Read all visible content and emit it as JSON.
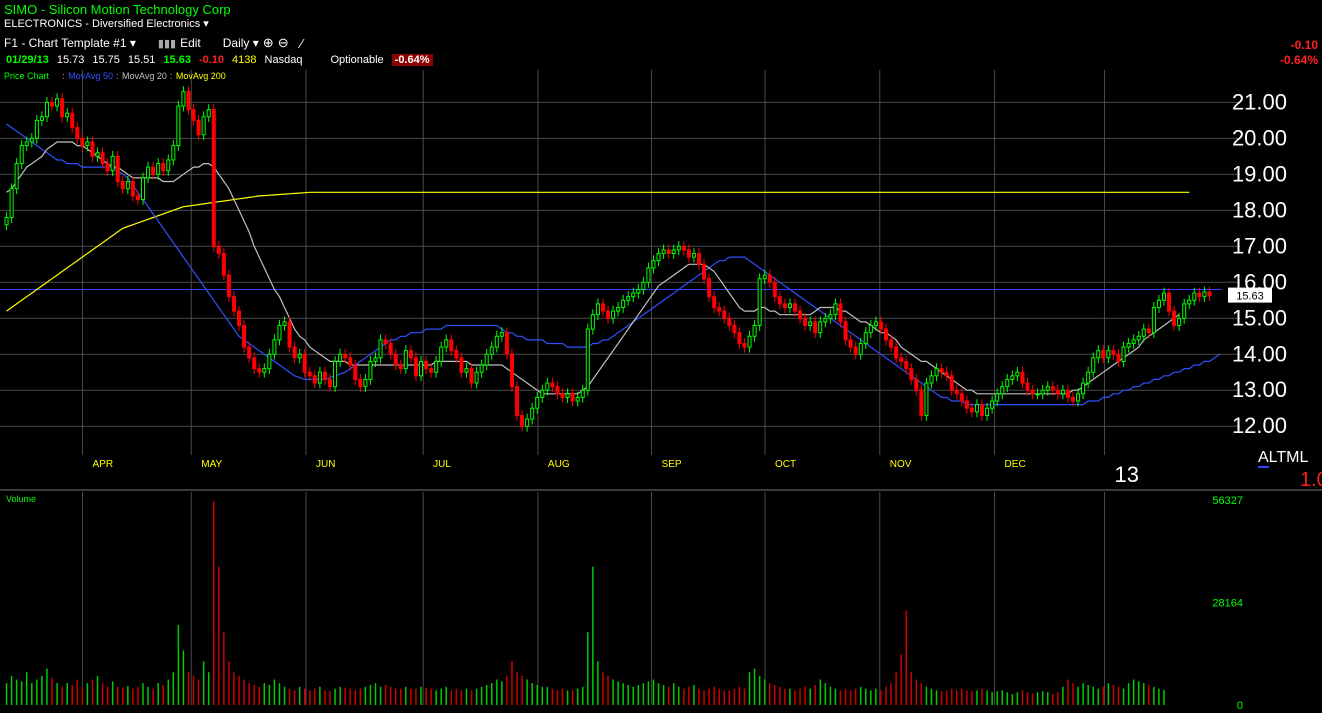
{
  "header": {
    "symbol_line": "SIMO  - Silicon Motion Technology Corp",
    "sector_line": "ELECTRONICS - Diversified Electronics",
    "toolbar": {
      "template": "F1 - Chart Template #1",
      "edit": "Edit",
      "period": "Daily"
    },
    "quote": {
      "date": "01/29/13",
      "open": "15.73",
      "high": "15.75",
      "low": "15.51",
      "last": "15.63",
      "change": "-0.10",
      "volume": "4138",
      "exchange": "Nasdaq",
      "optionable": "Optionable",
      "pct_change": "-0.64%"
    },
    "right_change": "-0.10",
    "right_pct": "-0.64%"
  },
  "chart_data": [
    {
      "type": "candlestick",
      "title": "",
      "legend": [
        "Price Chart",
        "MovAvg 50",
        "MovAvg 20",
        "MovAvg 200"
      ],
      "legend_colors": [
        "#00ff00",
        "#3050ff",
        "#c0c0c0",
        "#ffff00"
      ],
      "y_ticks": [
        "12.00",
        "13.00",
        "14.00",
        "15.00",
        "16.00",
        "17.00",
        "18.00",
        "19.00",
        "20.00",
        "21.00"
      ],
      "ylim": [
        11.2,
        21.9
      ],
      "x_labels": [
        "APR",
        "MAY",
        "JUN",
        "JUL",
        "AUG",
        "SEP",
        "OCT",
        "NOV",
        "DEC",
        "13"
      ],
      "last_price_label": "15.63",
      "horizontal_line": 15.8,
      "grid": true,
      "closes": [
        17.8,
        18.6,
        19.3,
        19.8,
        19.9,
        20.0,
        20.5,
        20.6,
        21.0,
        20.9,
        21.1,
        20.6,
        20.7,
        20.3,
        20.0,
        19.8,
        19.9,
        19.5,
        19.6,
        19.3,
        19.1,
        19.5,
        18.8,
        18.6,
        18.8,
        18.4,
        18.3,
        18.9,
        19.2,
        19.0,
        19.3,
        19.1,
        19.4,
        19.8,
        20.9,
        21.3,
        20.8,
        20.5,
        20.1,
        20.6,
        20.8,
        17.0,
        16.8,
        16.2,
        15.6,
        15.2,
        14.8,
        14.2,
        13.9,
        13.6,
        13.5,
        13.6,
        14.0,
        14.4,
        14.8,
        14.9,
        14.2,
        13.9,
        14.0,
        13.5,
        13.4,
        13.2,
        13.5,
        13.3,
        13.1,
        13.8,
        14.0,
        13.9,
        13.7,
        13.3,
        13.1,
        13.3,
        13.8,
        13.9,
        14.4,
        14.3,
        14.0,
        13.7,
        13.6,
        14.1,
        13.9,
        13.4,
        13.8,
        13.6,
        13.5,
        13.8,
        14.2,
        14.4,
        14.1,
        13.9,
        13.5,
        13.6,
        13.2,
        13.5,
        13.7,
        14.0,
        14.2,
        14.5,
        14.6,
        14.0,
        13.1,
        12.3,
        12.0,
        12.2,
        12.5,
        12.8,
        13.0,
        13.2,
        13.1,
        12.9,
        12.8,
        12.9,
        12.7,
        12.8,
        13.0,
        14.7,
        15.1,
        15.4,
        15.2,
        15.0,
        15.2,
        15.3,
        15.5,
        15.6,
        15.7,
        15.8,
        16.0,
        16.4,
        16.6,
        16.8,
        16.9,
        16.8,
        16.9,
        17.0,
        16.9,
        16.7,
        16.8,
        16.5,
        16.1,
        15.6,
        15.3,
        15.2,
        15.0,
        14.8,
        14.6,
        14.3,
        14.2,
        14.5,
        14.8,
        16.1,
        16.2,
        16.0,
        15.6,
        15.4,
        15.3,
        15.4,
        15.2,
        15.0,
        14.8,
        14.9,
        14.6,
        14.9,
        15.0,
        15.1,
        15.4,
        14.9,
        14.4,
        14.2,
        14.0,
        14.3,
        14.6,
        14.8,
        14.9,
        14.7,
        14.4,
        14.2,
        13.9,
        13.8,
        13.6,
        13.3,
        13.0,
        12.3,
        13.2,
        13.4,
        13.6,
        13.5,
        13.4,
        13.0,
        12.9,
        12.7,
        12.5,
        12.4,
        12.6,
        12.3,
        12.5,
        12.7,
        12.9,
        13.1,
        13.3,
        13.4,
        13.5,
        13.2,
        13.0,
        12.9,
        12.9,
        13.0,
        13.1,
        13.0,
        12.9,
        13.0,
        12.8,
        12.7,
        12.9,
        13.2,
        13.5,
        13.9,
        14.1,
        13.9,
        14.1,
        14.0,
        13.8,
        14.2,
        14.3,
        14.4,
        14.5,
        14.7,
        14.6,
        15.3,
        15.5,
        15.7,
        15.2,
        14.8,
        15.0,
        15.4,
        15.5,
        15.7,
        15.6,
        15.73,
        15.63
      ],
      "sma20": [
        18.5,
        18.6,
        18.8,
        19.0,
        19.2,
        19.3,
        19.4,
        19.5,
        19.7,
        19.8,
        19.9,
        19.9,
        19.9,
        19.9,
        19.8,
        19.8,
        19.7,
        19.6,
        19.5,
        19.4,
        19.3,
        19.2,
        19.2,
        19.1,
        19.0,
        18.9,
        18.9,
        18.9,
        18.9,
        18.9,
        18.9,
        18.8,
        18.8,
        18.8,
        18.9,
        19.0,
        19.1,
        19.2,
        19.2,
        19.3,
        19.3,
        19.2,
        19.0,
        18.8,
        18.6,
        18.3,
        18.0,
        17.7,
        17.4,
        17.0,
        16.7,
        16.4,
        16.1,
        15.8,
        15.6,
        15.3,
        15.0,
        14.7,
        14.5,
        14.4,
        14.2,
        14.1,
        14.0,
        13.9,
        13.8,
        13.8,
        13.8,
        13.8,
        13.7,
        13.7,
        13.7,
        13.7,
        13.7,
        13.7,
        13.7,
        13.7,
        13.7,
        13.7,
        13.7,
        13.7,
        13.7,
        13.7,
        13.7,
        13.7,
        13.7,
        13.8,
        13.8,
        13.8,
        13.8,
        13.8,
        13.8,
        13.8,
        13.7,
        13.7,
        13.7,
        13.7,
        13.7,
        13.7,
        13.7,
        13.6,
        13.5,
        13.4,
        13.3,
        13.2,
        13.1,
        13.0,
        12.9,
        12.9,
        12.9,
        12.9,
        12.9,
        12.9,
        12.9,
        12.9,
        13.0,
        13.1,
        13.3,
        13.5,
        13.7,
        13.9,
        14.1,
        14.3,
        14.5,
        14.7,
        14.9,
        15.1,
        15.3,
        15.5,
        15.7,
        15.9,
        16.0,
        16.1,
        16.2,
        16.3,
        16.4,
        16.5,
        16.5,
        16.5,
        16.5,
        16.4,
        16.3,
        16.1,
        15.9,
        15.7,
        15.5,
        15.3,
        15.2,
        15.2,
        15.2,
        15.3,
        15.3,
        15.2,
        15.2,
        15.1,
        15.1,
        15.1,
        15.1,
        15.1,
        15.1,
        15.1,
        15.2,
        15.3,
        15.3,
        15.3,
        15.3,
        15.2,
        15.2,
        15.1,
        15.0,
        14.9,
        14.9,
        14.8,
        14.7,
        14.6,
        14.6,
        14.5,
        14.4,
        14.2,
        14.1,
        14.0,
        13.9,
        13.8,
        13.8,
        13.7,
        13.6,
        13.5,
        13.4,
        13.3,
        13.2,
        13.1,
        13.0,
        13.0,
        12.9,
        12.9,
        12.9,
        12.9,
        12.9,
        12.9,
        12.9,
        12.9,
        12.9,
        12.9,
        12.9,
        12.9,
        12.9,
        12.9,
        12.9,
        12.9,
        12.9,
        12.9,
        12.9,
        13.0,
        13.0,
        13.1,
        13.2,
        13.3,
        13.4,
        13.5,
        13.6,
        13.7,
        13.8,
        13.9,
        14.0,
        14.1,
        14.2,
        14.4,
        14.5,
        14.6,
        14.7,
        14.8,
        14.9,
        15.0,
        15.1
      ],
      "sma50": [
        20.4,
        20.3,
        20.2,
        20.1,
        20.0,
        19.9,
        19.8,
        19.7,
        19.6,
        19.5,
        19.4,
        19.4,
        19.3,
        19.3,
        19.3,
        19.2,
        19.2,
        19.2,
        19.2,
        19.2,
        19.2,
        19.2,
        19.1,
        19.0,
        18.9,
        18.7,
        18.5,
        18.3,
        18.1,
        17.9,
        17.7,
        17.5,
        17.3,
        17.1,
        16.9,
        16.7,
        16.5,
        16.3,
        16.1,
        15.9,
        15.7,
        15.5,
        15.3,
        15.1,
        14.9,
        14.7,
        14.5,
        14.4,
        14.3,
        14.2,
        14.1,
        14.0,
        13.9,
        13.8,
        13.7,
        13.6,
        13.5,
        13.4,
        13.35,
        13.3,
        13.3,
        13.3,
        13.3,
        13.3,
        13.35,
        13.4,
        13.45,
        13.5,
        13.6,
        13.7,
        13.8,
        13.9,
        14.0,
        14.1,
        14.2,
        14.3,
        14.4,
        14.4,
        14.5,
        14.5,
        14.6,
        14.6,
        14.6,
        14.7,
        14.7,
        14.7,
        14.7,
        14.8,
        14.8,
        14.8,
        14.8,
        14.8,
        14.8,
        14.8,
        14.8,
        14.8,
        14.8,
        14.8,
        14.7,
        14.6,
        14.6,
        14.5,
        14.5,
        14.4,
        14.4,
        14.4,
        14.4,
        14.3,
        14.3,
        14.3,
        14.3,
        14.2,
        14.2,
        14.2,
        14.2,
        14.2,
        14.3,
        14.3,
        14.4,
        14.4,
        14.5,
        14.6,
        14.7,
        14.8,
        14.9,
        15.0,
        15.1,
        15.2,
        15.3,
        15.4,
        15.5,
        15.6,
        15.7,
        15.8,
        15.9,
        16.0,
        16.1,
        16.2,
        16.3,
        16.4,
        16.5,
        16.6,
        16.6,
        16.7,
        16.7,
        16.7,
        16.7,
        16.6,
        16.5,
        16.4,
        16.3,
        16.2,
        16.1,
        16.0,
        15.9,
        15.8,
        15.7,
        15.6,
        15.5,
        15.4,
        15.3,
        15.2,
        15.1,
        15.0,
        14.9,
        14.8,
        14.7,
        14.6,
        14.5,
        14.4,
        14.3,
        14.2,
        14.1,
        14.0,
        13.9,
        13.8,
        13.7,
        13.6,
        13.5,
        13.4,
        13.3,
        13.2,
        13.1,
        13.0,
        12.9,
        12.8,
        12.8,
        12.7,
        12.7,
        12.7,
        12.6,
        12.6,
        12.6,
        12.6,
        12.6,
        12.6,
        12.6,
        12.6,
        12.6,
        12.6,
        12.6,
        12.6,
        12.6,
        12.6,
        12.6,
        12.6,
        12.6,
        12.6,
        12.6,
        12.6,
        12.6,
        12.6,
        12.6,
        12.6,
        12.7,
        12.7,
        12.7,
        12.8,
        12.8,
        12.9,
        12.9,
        13.0,
        13.0,
        13.1,
        13.1,
        13.2,
        13.2,
        13.3,
        13.3,
        13.4,
        13.4,
        13.5,
        13.5,
        13.6,
        13.6,
        13.7,
        13.7,
        13.8,
        13.8,
        13.9,
        14.0
      ],
      "sma200": [
        15.2,
        15.3,
        15.4,
        15.5,
        15.6,
        15.7,
        15.8,
        15.9,
        16.0,
        16.1,
        16.2,
        16.3,
        16.4,
        16.5,
        16.6,
        16.7,
        16.8,
        16.9,
        17.0,
        17.1,
        17.2,
        17.3,
        17.4,
        17.5,
        17.55,
        17.6,
        17.65,
        17.7,
        17.75,
        17.8,
        17.85,
        17.9,
        17.95,
        18.0,
        18.05,
        18.1,
        18.12,
        18.14,
        18.16,
        18.18,
        18.2,
        18.22,
        18.24,
        18.26,
        18.28,
        18.3,
        18.32,
        18.34,
        18.36,
        18.38,
        18.4,
        18.41,
        18.42,
        18.43,
        18.44,
        18.45,
        18.46,
        18.47,
        18.48,
        18.49,
        18.5,
        18.5,
        18.5,
        18.5,
        18.5,
        18.5,
        18.5,
        18.5,
        18.5,
        18.5,
        18.5,
        18.5,
        18.5,
        18.5,
        18.5,
        18.5,
        18.5,
        18.5,
        18.5,
        18.5,
        18.5,
        18.5,
        18.5,
        18.5,
        18.5,
        18.5,
        18.5,
        18.5,
        18.5,
        18.5,
        18.5,
        18.5,
        18.5,
        18.5,
        18.5,
        18.5,
        18.5,
        18.5,
        18.5,
        18.5,
        18.5,
        18.5,
        18.5,
        18.5,
        18.5,
        18.5,
        18.5,
        18.5,
        18.5,
        18.5,
        18.5,
        18.5,
        18.5,
        18.5,
        18.5,
        18.5,
        18.5,
        18.5,
        18.5,
        18.5,
        18.5,
        18.5,
        18.5,
        18.5,
        18.5,
        18.5,
        18.5,
        18.5,
        18.5,
        18.5,
        18.5,
        18.5,
        18.5,
        18.5,
        18.5,
        18.5,
        18.5,
        18.5,
        18.5,
        18.5,
        18.5,
        18.5,
        18.5,
        18.5,
        18.5,
        18.5,
        18.5,
        18.5,
        18.5,
        18.5,
        18.5,
        18.5,
        18.5,
        18.5,
        18.5,
        18.5,
        18.5,
        18.5,
        18.5,
        18.5,
        18.5,
        18.5,
        18.5,
        18.5,
        18.5,
        18.5,
        18.5,
        18.5,
        18.5,
        18.5,
        18.5,
        18.5,
        18.5,
        18.5,
        18.5,
        18.5,
        18.5,
        18.5,
        18.5,
        18.5,
        18.5,
        18.5,
        18.5,
        18.5,
        18.5,
        18.5,
        18.5,
        18.5,
        18.5,
        18.5,
        18.5,
        18.5,
        18.5,
        18.5,
        18.5,
        18.5,
        18.5,
        18.5,
        18.5,
        18.5,
        18.5,
        18.5,
        18.5,
        18.5,
        18.5,
        18.5,
        18.5,
        18.5,
        18.5,
        18.5,
        18.5,
        18.5,
        18.5,
        18.5,
        18.5,
        18.5,
        18.5,
        18.5,
        18.5,
        18.5,
        18.5,
        18.5,
        18.5,
        18.5,
        18.5,
        18.5,
        18.5,
        18.5,
        18.5,
        18.5,
        18.5,
        18.5,
        18.5,
        18.5,
        18.5
      ]
    },
    {
      "type": "bar",
      "title": "Volume",
      "y_ticks": [
        "56327",
        "28164",
        "0"
      ],
      "ylim": [
        0,
        56327
      ],
      "volumes": [
        6000,
        8000,
        7000,
        6500,
        9000,
        6000,
        7000,
        8000,
        10000,
        7500,
        6000,
        5000,
        6000,
        5500,
        7000,
        5000,
        6000,
        7000,
        8000,
        6000,
        5000,
        6500,
        5000,
        4800,
        5200,
        4500,
        5000,
        6000,
        5000,
        4500,
        6000,
        5500,
        7000,
        9000,
        22000,
        15000,
        9000,
        8000,
        7000,
        12000,
        9000,
        56000,
        38000,
        20000,
        12000,
        9000,
        8000,
        7000,
        6000,
        5500,
        5000,
        6000,
        5500,
        7000,
        6000,
        5000,
        4500,
        4000,
        5000,
        4500,
        4000,
        4500,
        5000,
        4000,
        3800,
        4500,
        5000,
        4800,
        4500,
        4000,
        4500,
        5000,
        5500,
        6000,
        5000,
        5500,
        5000,
        4500,
        4500,
        5000,
        4500,
        4500,
        5000,
        4800,
        4500,
        4000,
        4500,
        5000,
        4000,
        4500,
        4000,
        4500,
        4000,
        4500,
        5000,
        5500,
        6000,
        7000,
        6500,
        8000,
        12000,
        9000,
        8000,
        7000,
        6000,
        5500,
        5000,
        5000,
        4500,
        4000,
        4500,
        4000,
        4000,
        4500,
        5000,
        20000,
        38000,
        12000,
        9000,
        8000,
        7000,
        6500,
        6000,
        5500,
        5000,
        5500,
        6000,
        6500,
        7000,
        6000,
        5500,
        5000,
        6000,
        5000,
        4500,
        5000,
        5500,
        4500,
        4000,
        4500,
        5000,
        4500,
        4000,
        4000,
        4500,
        5000,
        4500,
        9000,
        10000,
        8000,
        7000,
        6000,
        5500,
        5000,
        4500,
        4500,
        4000,
        4500,
        5000,
        4500,
        5500,
        7000,
        6000,
        5000,
        4500,
        4000,
        4500,
        4000,
        4500,
        5000,
        4500,
        4000,
        4500,
        4000,
        5000,
        6000,
        9000,
        14000,
        26000,
        9000,
        7000,
        6000,
        5000,
        4500,
        4000,
        3800,
        4000,
        4500,
        4000,
        4500,
        4000,
        3800,
        4000,
        4500,
        4000,
        3500,
        3800,
        4000,
        3500,
        3000,
        3500,
        4000,
        3500,
        3200,
        3500,
        3800,
        3500,
        3000,
        3500,
        5000,
        7000,
        6000,
        5000,
        6000,
        5500,
        5000,
        4500,
        5000,
        6000,
        5500,
        5000,
        4500,
        6000,
        7000,
        6500,
        6000,
        5500,
        5000,
        4500,
        4138
      ]
    }
  ]
}
